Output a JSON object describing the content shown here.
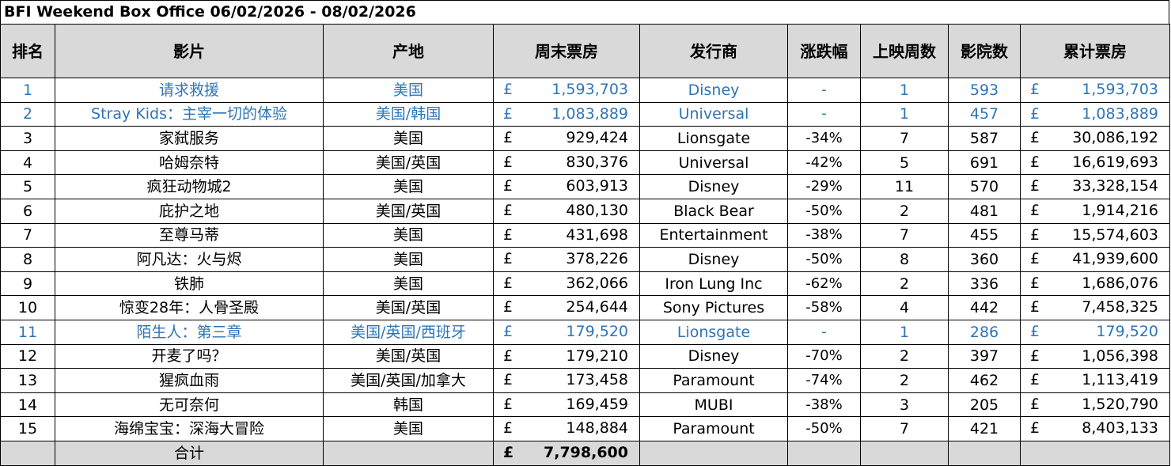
{
  "title": "BFI Weekend Box Office 06/02/2026 - 08/02/2026",
  "colors": {
    "header_bg": "#d9d9d9",
    "new_release": "#2e75b6",
    "text": "#000000"
  },
  "headers": [
    "排名",
    "影片",
    "产地",
    "周末票房",
    "发行商",
    "涨跌幅",
    "上映周数",
    "影院数",
    "累计票房"
  ],
  "currency": "£",
  "rows": [
    {
      "rank": "1",
      "film": "请求救援",
      "origin": "美国",
      "weekend": "1,593,703",
      "distributor": "Disney",
      "change": "-",
      "weeks": "1",
      "cinemas": "593",
      "total": "1,593,703",
      "is_new": true
    },
    {
      "rank": "2",
      "film": "Stray Kids：主宰一切的体验",
      "origin": "美国/韩国",
      "weekend": "1,083,889",
      "distributor": "Universal",
      "change": "-",
      "weeks": "1",
      "cinemas": "457",
      "total": "1,083,889",
      "is_new": true
    },
    {
      "rank": "3",
      "film": "家弑服务",
      "origin": "美国",
      "weekend": "929,424",
      "distributor": "Lionsgate",
      "change": "-34%",
      "weeks": "7",
      "cinemas": "587",
      "total": "30,086,192",
      "is_new": false
    },
    {
      "rank": "4",
      "film": "哈姆奈特",
      "origin": "美国/英国",
      "weekend": "830,376",
      "distributor": "Universal",
      "change": "-42%",
      "weeks": "5",
      "cinemas": "691",
      "total": "16,619,693",
      "is_new": false
    },
    {
      "rank": "5",
      "film": "疯狂动物城2",
      "origin": "美国",
      "weekend": "603,913",
      "distributor": "Disney",
      "change": "-29%",
      "weeks": "11",
      "cinemas": "570",
      "total": "33,328,154",
      "is_new": false
    },
    {
      "rank": "6",
      "film": "庇护之地",
      "origin": "美国/英国",
      "weekend": "480,130",
      "distributor": "Black Bear",
      "change": "-50%",
      "weeks": "2",
      "cinemas": "481",
      "total": "1,914,216",
      "is_new": false
    },
    {
      "rank": "7",
      "film": "至尊马蒂",
      "origin": "美国",
      "weekend": "431,698",
      "distributor": "Entertainment",
      "change": "-38%",
      "weeks": "7",
      "cinemas": "455",
      "total": "15,574,603",
      "is_new": false
    },
    {
      "rank": "8",
      "film": "阿凡达：火与烬",
      "origin": "美国",
      "weekend": "378,226",
      "distributor": "Disney",
      "change": "-50%",
      "weeks": "8",
      "cinemas": "360",
      "total": "41,939,600",
      "is_new": false
    },
    {
      "rank": "9",
      "film": "铁肺",
      "origin": "美国",
      "weekend": "362,066",
      "distributor": "Iron Lung Inc",
      "change": "-62%",
      "weeks": "2",
      "cinemas": "336",
      "total": "1,686,076",
      "is_new": false
    },
    {
      "rank": "10",
      "film": "惊变28年：人骨圣殿",
      "origin": "美国/英国",
      "weekend": "254,644",
      "distributor": "Sony Pictures",
      "change": "-58%",
      "weeks": "4",
      "cinemas": "442",
      "total": "7,458,325",
      "is_new": false
    },
    {
      "rank": "11",
      "film": "陌生人：第三章",
      "origin": "美国/英国/西班牙",
      "weekend": "179,520",
      "distributor": "Lionsgate",
      "change": "-",
      "weeks": "1",
      "cinemas": "286",
      "total": "179,520",
      "is_new": true
    },
    {
      "rank": "12",
      "film": "开麦了吗？",
      "origin": "美国/英国",
      "weekend": "179,210",
      "distributor": "Disney",
      "change": "-70%",
      "weeks": "2",
      "cinemas": "397",
      "total": "1,056,398",
      "is_new": false
    },
    {
      "rank": "13",
      "film": "猩疯血雨",
      "origin": "美国/英国/加拿大",
      "weekend": "173,458",
      "distributor": "Paramount",
      "change": "-74%",
      "weeks": "2",
      "cinemas": "462",
      "total": "1,113,419",
      "is_new": false
    },
    {
      "rank": "14",
      "film": "无可奈何",
      "origin": "韩国",
      "weekend": "169,459",
      "distributor": "MUBI",
      "change": "-38%",
      "weeks": "3",
      "cinemas": "205",
      "total": "1,520,790",
      "is_new": false
    },
    {
      "rank": "15",
      "film": "海绵宝宝：深海大冒险",
      "origin": "美国",
      "weekend": "148,884",
      "distributor": "Paramount",
      "change": "-50%",
      "weeks": "7",
      "cinemas": "421",
      "total": "8,403,133",
      "is_new": false
    }
  ],
  "total_row": {
    "label": "合计",
    "weekend": "7,798,600"
  }
}
